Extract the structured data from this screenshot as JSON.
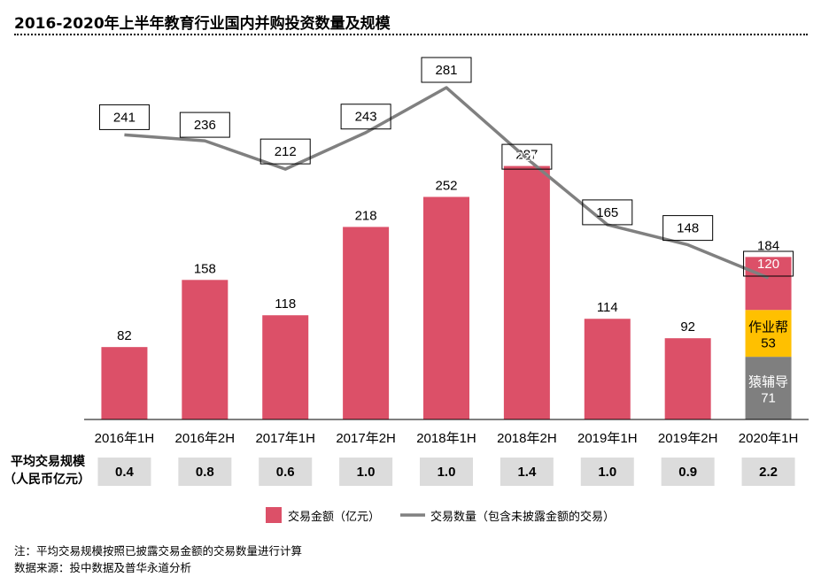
{
  "title": "2016-2020年上半年教育行业国内并购投资数量及规模",
  "chart_data": {
    "type": "bar",
    "categories": [
      "2016年1H",
      "2016年2H",
      "2017年1H",
      "2017年2H",
      "2018年1H",
      "2018年2H",
      "2019年1H",
      "2019年2H",
      "2020年1H"
    ],
    "series": [
      {
        "name": "交易金额（亿元）",
        "type": "bar",
        "color": "#dc5068",
        "values": [
          82,
          158,
          118,
          218,
          252,
          287,
          114,
          92,
          184
        ]
      },
      {
        "name": "交易数量（包含未披露金额的交易）",
        "type": "line",
        "color": "#808080",
        "values": [
          241,
          236,
          212,
          243,
          281,
          221,
          165,
          148,
          120
        ]
      }
    ],
    "stack_2020": [
      {
        "label": "猿辅导",
        "value": 71,
        "color": "#7f7f7f"
      },
      {
        "label": "作业帮",
        "value": 53,
        "color": "#ffc000"
      }
    ],
    "avg_scale_label": [
      "平均交易规模",
      "（人民币亿元）"
    ],
    "avg_scale": [
      "0.4",
      "0.8",
      "0.6",
      "1.0",
      "1.0",
      "1.4",
      "1.0",
      "0.9",
      "2.2"
    ],
    "ylim_bar": [
      0,
      300
    ],
    "ylim_line": [
      0,
      320
    ]
  },
  "notes": {
    "note1": "注：平均交易规模按照已披露交易金额的交易数量进行计算",
    "note2": "数据来源：投中数据及普华永道分析"
  }
}
